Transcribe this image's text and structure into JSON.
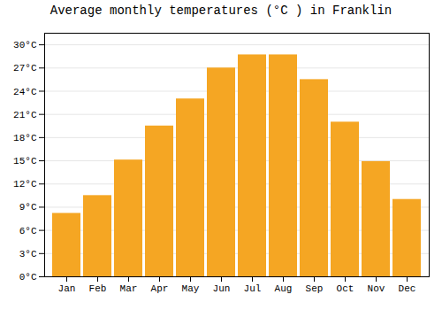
{
  "chart_data": {
    "type": "bar",
    "title": "Average monthly temperatures (°C ) in Franklin",
    "categories": [
      "Jan",
      "Feb",
      "Mar",
      "Apr",
      "May",
      "Jun",
      "Jul",
      "Aug",
      "Sep",
      "Oct",
      "Nov",
      "Dec"
    ],
    "values": [
      8.2,
      10.5,
      15.1,
      19.5,
      23.0,
      27.0,
      28.7,
      28.7,
      25.5,
      20.0,
      14.9,
      10.0
    ],
    "color": "#F5A623",
    "ylim": [
      0,
      31.5
    ],
    "yticks": [
      {
        "value": 0,
        "label": "0°C"
      },
      {
        "value": 3,
        "label": "3°C"
      },
      {
        "value": 6,
        "label": "6°C"
      },
      {
        "value": 9,
        "label": "9°C"
      },
      {
        "value": 12,
        "label": "12°C"
      },
      {
        "value": 15,
        "label": "15°C"
      },
      {
        "value": 18,
        "label": "18°C"
      },
      {
        "value": 21,
        "label": "21°C"
      },
      {
        "value": 24,
        "label": "24°C"
      },
      {
        "value": 27,
        "label": "27°C"
      },
      {
        "value": 30,
        "label": "30°C"
      }
    ],
    "grid": true
  }
}
